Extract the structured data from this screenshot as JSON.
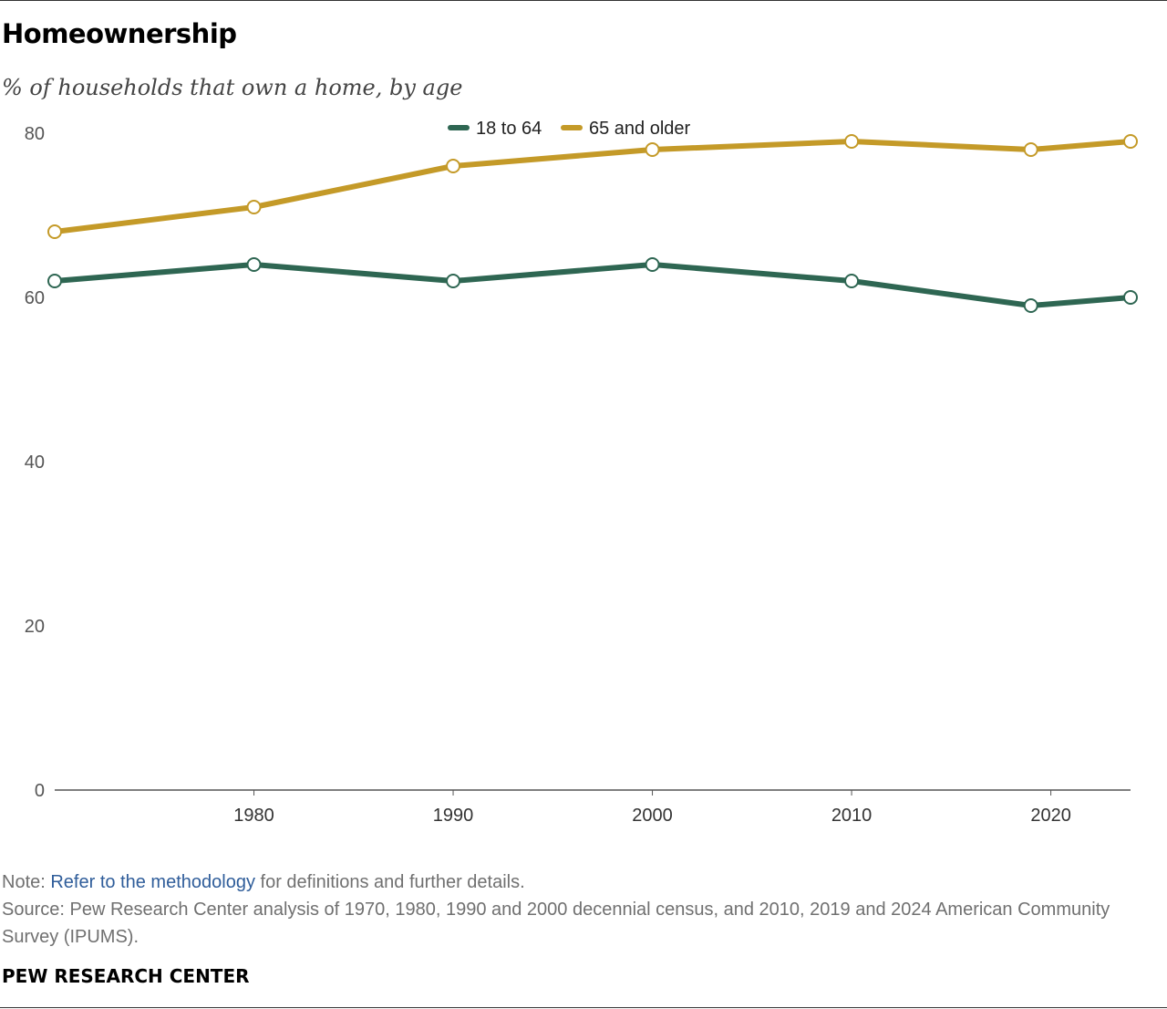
{
  "title": "Homeownership",
  "subtitle": "% of households that own a home, by age",
  "chart_data": {
    "type": "line",
    "title": "Homeownership",
    "subtitle": "% of households that own a home, by age",
    "xlabel": "",
    "ylabel": "",
    "x": [
      1970,
      1980,
      1990,
      2000,
      2010,
      2019,
      2024
    ],
    "x_ticks": [
      1980,
      1990,
      2000,
      2010,
      2020
    ],
    "y_ticks": [
      0,
      20,
      40,
      60,
      80
    ],
    "xlim": [
      1970,
      2024
    ],
    "ylim": [
      0,
      80
    ],
    "grid": false,
    "legend_position": "top-center",
    "series": [
      {
        "name": "18 to 64",
        "color": "#2e6652",
        "values": [
          62,
          64,
          62,
          64,
          62,
          59,
          60
        ]
      },
      {
        "name": "65 and older",
        "color": "#c49a28",
        "values": [
          68,
          71,
          76,
          78,
          79,
          78,
          79
        ]
      }
    ]
  },
  "notes": {
    "note_prefix": "Note: ",
    "note_link": "Refer to the methodology",
    "note_suffix": " for definitions and further details.",
    "source": "Source: Pew Research Center analysis of 1970, 1980, 1990 and 2000 decennial census, and 2010, 2019 and 2024 American Community Survey (IPUMS)."
  },
  "brand": "PEW RESEARCH CENTER"
}
